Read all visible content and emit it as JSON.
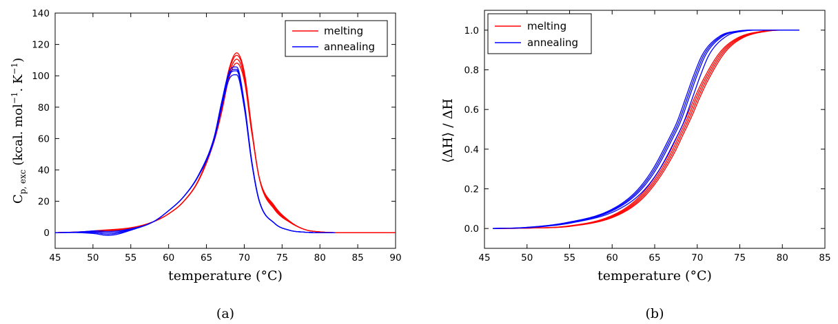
{
  "chart_data": [
    {
      "type": "line",
      "panel_label": "(a)",
      "xlabel": "temperature (°C)",
      "ylabel": "C",
      "ylabel_sub": "p, exc",
      "ylabel_units": " (kcal. mol",
      "ylabel_exp": "−1",
      "ylabel_units2": ". K",
      "ylabel_end": ")",
      "xlim": [
        45,
        90
      ],
      "ylim": [
        -10,
        140
      ],
      "xticks": [
        45,
        50,
        55,
        60,
        65,
        70,
        75,
        80,
        85,
        90
      ],
      "yticks": [
        0,
        20,
        40,
        60,
        80,
        100,
        120,
        140
      ],
      "grid": false,
      "legend": {
        "position": "top-right",
        "entries": [
          "melting",
          "annealing"
        ]
      },
      "series": [
        {
          "name": "melting",
          "color": "#ff0000",
          "peak_T": 68.9,
          "peak_values": [
            114.5,
            113.0,
            110.5,
            108.0
          ],
          "x": [
            45,
            50,
            55,
            58,
            60,
            62,
            64,
            66,
            67,
            68,
            69,
            70,
            71,
            72,
            74,
            76,
            78,
            80,
            85,
            90
          ],
          "y": [
            0,
            0.8,
            3,
            7,
            12,
            20,
            34,
            60,
            80,
            104,
            114,
            102,
            66,
            35,
            16,
            7,
            2,
            0.5,
            0,
            0
          ]
        },
        {
          "name": "annealing",
          "color": "#0000ff",
          "peak_T": 68.5,
          "peak_values": [
            105.5,
            104.0,
            103.0,
            100.5
          ],
          "x": [
            45,
            50,
            52,
            55,
            58,
            60,
            62,
            64,
            66,
            67,
            68,
            69,
            70,
            71,
            72,
            74,
            76,
            78,
            80,
            82
          ],
          "y": [
            0,
            0.3,
            -0.5,
            2,
            7,
            14,
            23,
            37,
            60,
            82,
            101,
            104,
            82,
            45,
            20,
            6,
            1.5,
            0.3,
            0,
            0
          ]
        }
      ]
    },
    {
      "type": "line",
      "panel_label": "(b)",
      "xlabel": "temperature (°C)",
      "ylabel": "⟨ΔH⟩ / ΔH",
      "xlim": [
        45,
        85
      ],
      "ylim": [
        -0.1,
        1.1
      ],
      "xticks": [
        45,
        50,
        55,
        60,
        65,
        70,
        75,
        80,
        85
      ],
      "yticks": [
        0.0,
        0.2,
        0.4,
        0.6,
        0.8,
        1.0
      ],
      "grid": false,
      "legend": {
        "position": "top-left",
        "entries": [
          "melting",
          "annealing"
        ]
      },
      "series": [
        {
          "name": "melting",
          "color": "#ff0000",
          "midpoints": [
            68.6,
            68.8,
            69.0,
            69.2
          ],
          "x": [
            46,
            50,
            55,
            60,
            63,
            65,
            67,
            68,
            69,
            70,
            71,
            73,
            75,
            78,
            80,
            82
          ],
          "y": [
            0,
            0.002,
            0.012,
            0.06,
            0.14,
            0.24,
            0.38,
            0.47,
            0.56,
            0.66,
            0.75,
            0.89,
            0.96,
            0.995,
            1.0,
            1.0
          ]
        },
        {
          "name": "annealing",
          "color": "#0000ff",
          "midpoints": [
            67.7,
            67.9,
            68.1,
            68.5
          ],
          "x": [
            46,
            50,
            55,
            60,
            63,
            65,
            67,
            68,
            69,
            70,
            71,
            73,
            75,
            78,
            80,
            82
          ],
          "y": [
            0,
            0.005,
            0.03,
            0.09,
            0.18,
            0.29,
            0.45,
            0.54,
            0.66,
            0.78,
            0.88,
            0.97,
            0.995,
            1.0,
            1.0,
            1.0
          ]
        }
      ]
    }
  ]
}
